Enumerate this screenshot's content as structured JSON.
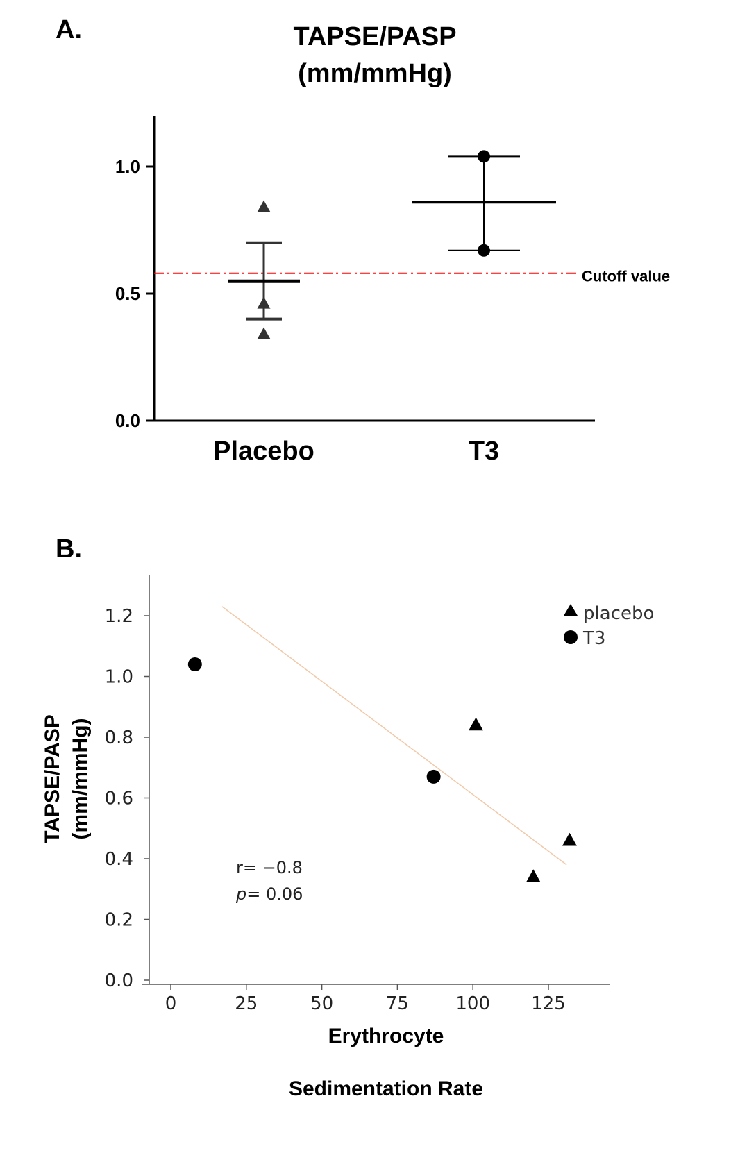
{
  "chart_data": [
    {
      "type": "scatter",
      "panel_label": "A.",
      "title": "TAPSE/PASP",
      "subtitle": "(mm/mmHg)",
      "categories": [
        "Placebo",
        "T3"
      ],
      "ylim": [
        0,
        1.2
      ],
      "yticks": [
        "0.0",
        "0.5",
        "1.0"
      ],
      "series": [
        {
          "category": "Placebo",
          "marker": "triangle",
          "points": [
            0.84,
            0.46,
            0.34
          ],
          "mean": 0.55,
          "error_upper": 0.7,
          "error_lower": 0.4
        },
        {
          "category": "T3",
          "marker": "circle",
          "points": [
            1.04,
            0.67
          ],
          "mean": 0.86,
          "error_upper": 1.04,
          "error_lower": 0.67
        }
      ],
      "reference_line": {
        "value": 0.58,
        "label": "Cutoff value",
        "color": "#ff0000"
      },
      "grid": false
    },
    {
      "type": "scatter",
      "panel_label": "B.",
      "xlabel_line1": "Erythrocyte",
      "xlabel_line2": "Sedimentation Rate",
      "ylabel_line1": "TAPSE/PASP",
      "ylabel_line2": "(mm/mmHg)",
      "xlim": [
        -10,
        145
      ],
      "ylim": [
        0,
        1.3
      ],
      "xticks": [
        "0",
        "25",
        "50",
        "75",
        "100",
        "125"
      ],
      "yticks": [
        "0.0",
        "0.2",
        "0.4",
        "0.6",
        "0.8",
        "1.0",
        "1.2"
      ],
      "series": [
        {
          "name": "placebo",
          "marker": "triangle",
          "x": [
            101,
            120,
            132
          ],
          "y": [
            0.84,
            0.34,
            0.46
          ]
        },
        {
          "name": "T3",
          "marker": "circle",
          "x": [
            8,
            87
          ],
          "y": [
            1.04,
            0.67
          ]
        }
      ],
      "trendline": {
        "x": [
          17,
          131
        ],
        "y": [
          1.23,
          0.38
        ],
        "color": "#f2c9a8"
      },
      "annotation_r": "r= −0.8",
      "annotation_p_italic": "p",
      "annotation_p_rest": "= 0.06",
      "legend_position": "top-right",
      "grid": false
    }
  ]
}
